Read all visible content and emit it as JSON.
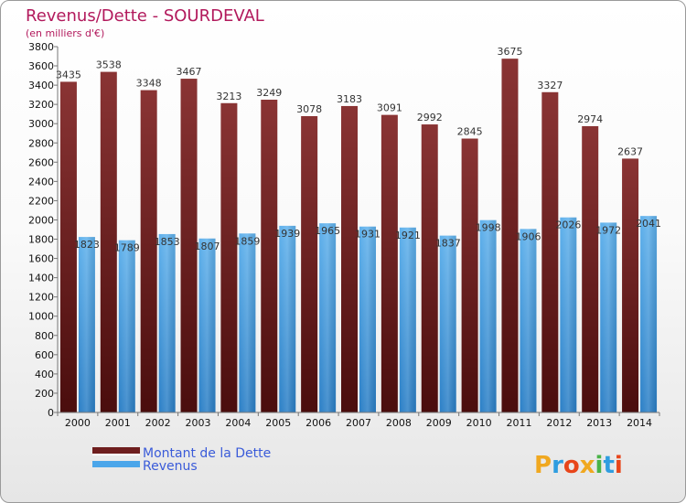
{
  "colors": {
    "title": "#b2195c",
    "debt_light": "#8a3434",
    "debt_dark": "#4a0d0d",
    "rev_light": "#5fb1ec",
    "rev_dark": "#2b7fc6",
    "legend_text": "#3a5bd9"
  },
  "chart_data": {
    "type": "bar",
    "title": "Revenus/Dette - SOURDEVAL",
    "subtitle": "(en milliers d'€)",
    "xlabel": "",
    "ylabel": "",
    "ylim": [
      0,
      3800
    ],
    "yticks": [
      0,
      200,
      400,
      600,
      800,
      1000,
      1200,
      1400,
      1600,
      1800,
      2000,
      2200,
      2400,
      2600,
      2800,
      3000,
      3200,
      3400,
      3600,
      3800
    ],
    "grid": false,
    "legend_position": "bottom-left",
    "categories": [
      "2000",
      "2001",
      "2002",
      "2003",
      "2004",
      "2005",
      "2006",
      "2007",
      "2008",
      "2009",
      "2010",
      "2011",
      "2012",
      "2013",
      "2014"
    ],
    "series": [
      {
        "name": "Montant de la Dette",
        "values": [
          3435,
          3538,
          3348,
          3467,
          3213,
          3249,
          3078,
          3183,
          3091,
          2992,
          2845,
          3675,
          3327,
          2974,
          2637
        ]
      },
      {
        "name": "Revenus",
        "values": [
          1823,
          1789,
          1853,
          1807,
          1859,
          1939,
          1965,
          1931,
          1921,
          1837,
          1998,
          1906,
          2026,
          1972,
          2041
        ]
      }
    ]
  },
  "logo": {
    "letters": [
      "P",
      "r",
      "o",
      "x",
      "i",
      "t",
      "i"
    ],
    "colors": [
      "#f0a820",
      "#2f9de0",
      "#e8451a",
      "#f0a820",
      "#49b347",
      "#2f9de0",
      "#e8451a"
    ]
  }
}
